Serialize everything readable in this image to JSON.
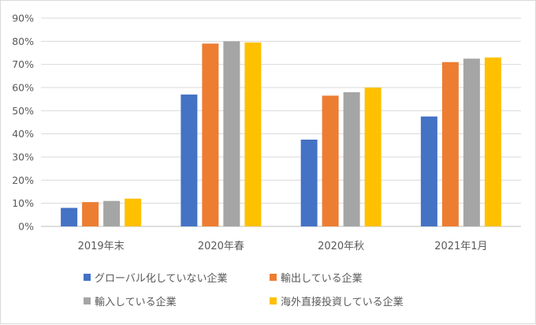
{
  "chart_data": {
    "type": "bar",
    "categories": [
      "2019年末",
      "2020年春",
      "2020年秋",
      "2021年1月"
    ],
    "series": [
      {
        "name": "グローバル化していない企業",
        "color": "#4472c4",
        "values": [
          8,
          57,
          37.5,
          47.5
        ]
      },
      {
        "name": "輸出している企業",
        "color": "#ed7d31",
        "values": [
          10.5,
          79,
          56.5,
          71
        ]
      },
      {
        "name": "輸入している企業",
        "color": "#a5a5a5",
        "values": [
          11,
          80,
          58,
          72.5
        ]
      },
      {
        "name": "海外直接投資している企業",
        "color": "#ffc000",
        "values": [
          12,
          79.5,
          60,
          73
        ]
      }
    ],
    "y_ticks": [
      0,
      10,
      20,
      30,
      40,
      50,
      60,
      70,
      80,
      90
    ],
    "y_tick_labels": [
      "0%",
      "10%",
      "20%",
      "30%",
      "40%",
      "50%",
      "60%",
      "70%",
      "80%",
      "90%"
    ],
    "ylim": [
      0,
      90
    ],
    "grid": true,
    "legend_position": "bottom",
    "title": "",
    "xlabel": "",
    "ylabel": ""
  }
}
